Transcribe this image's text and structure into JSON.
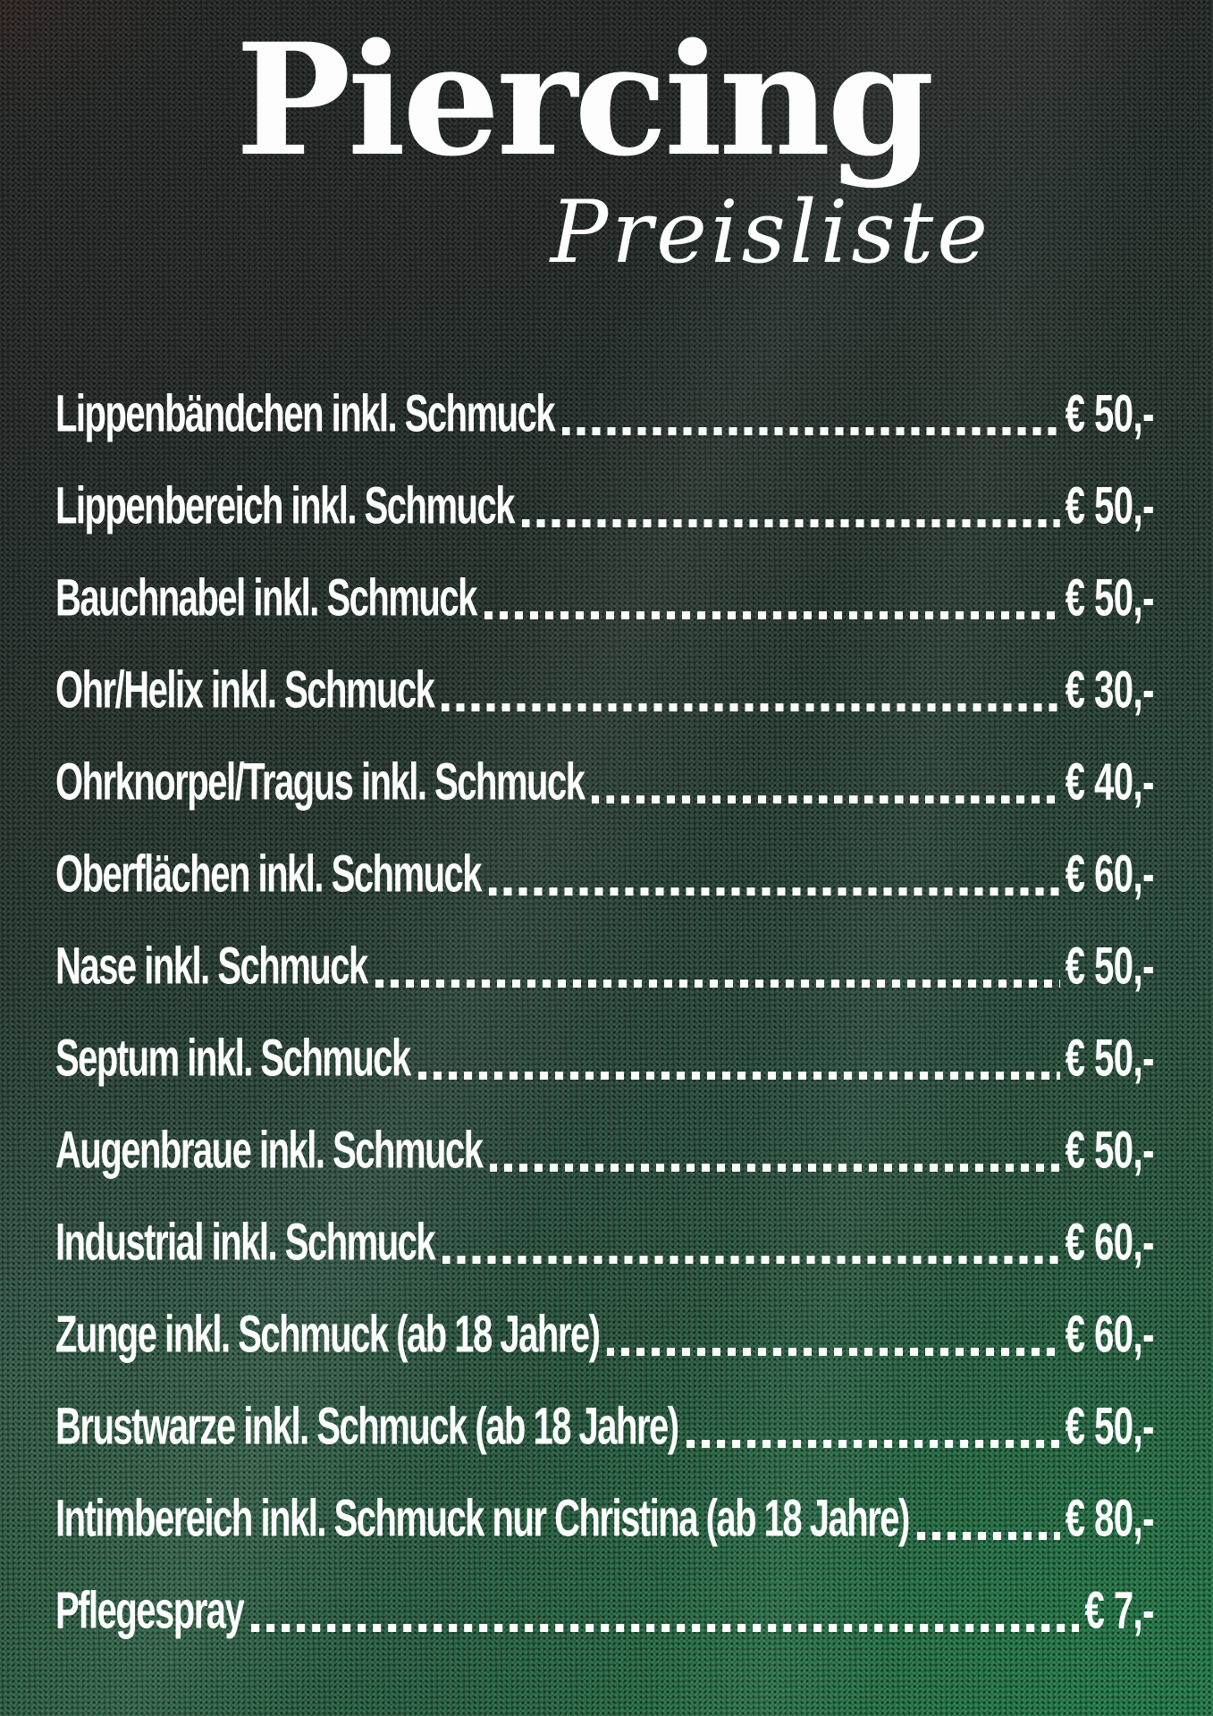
{
  "header": {
    "title": "Piercing",
    "subtitle": "Preisliste"
  },
  "price_list": {
    "items": [
      {
        "label": "Lippenbändchen inkl. Schmuck",
        "price": "€ 50,-"
      },
      {
        "label": "Lippenbereich inkl. Schmuck",
        "price": "€ 50,-"
      },
      {
        "label": "Bauchnabel inkl. Schmuck",
        "price": "€ 50,-"
      },
      {
        "label": "Ohr/Helix inkl. Schmuck",
        "price": "€ 30,-"
      },
      {
        "label": "Ohrknorpel/Tragus inkl. Schmuck",
        "price": "€ 40,-"
      },
      {
        "label": "Oberflächen inkl. Schmuck",
        "price": "€ 60,-"
      },
      {
        "label": "Nase inkl. Schmuck",
        "price": "€ 50,-"
      },
      {
        "label": "Septum inkl. Schmuck",
        "price": "€ 50,-"
      },
      {
        "label": "Augenbraue inkl. Schmuck",
        "price": "€ 50,-"
      },
      {
        "label": "Industrial inkl. Schmuck",
        "price": "€ 60,-"
      },
      {
        "label": "Zunge inkl. Schmuck (ab 18 Jahre)",
        "price": "€ 60,-"
      },
      {
        "label": "Brustwarze inkl. Schmuck (ab 18 Jahre)",
        "price": "€ 50,-"
      },
      {
        "label": "Intimbereich inkl. Schmuck nur Christina (ab 18 Jahre)",
        "price": "€ 80,-"
      },
      {
        "label": "Pflegespray",
        "price": "€ 7,-"
      }
    ]
  },
  "colors": {
    "text": "#fdfdfd",
    "background_top": "#242927",
    "background_mid": "#2d5040",
    "background_bottom": "#297349"
  }
}
